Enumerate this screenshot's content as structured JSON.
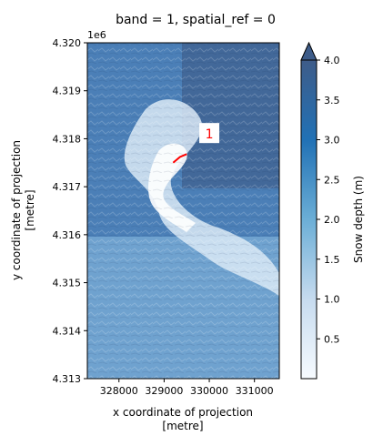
{
  "chart_data": {
    "type": "heatmap",
    "title": "band = 1, spatial_ref = 0",
    "xlabel": [
      "x coordinate of projection",
      "[metre]"
    ],
    "ylabel": [
      "y coordinate of projection",
      "[metre]"
    ],
    "x_ticks": [
      {
        "value": 328000,
        "label": "328000"
      },
      {
        "value": 329000,
        "label": "329000"
      },
      {
        "value": 330000,
        "label": "330000"
      },
      {
        "value": 331000,
        "label": "331000"
      }
    ],
    "y_ticks": [
      {
        "value": 4.313,
        "label": "4.313"
      },
      {
        "value": 4.314,
        "label": "4.314"
      },
      {
        "value": 4.315,
        "label": "4.315"
      },
      {
        "value": 4.316,
        "label": "4.316"
      },
      {
        "value": 4.317,
        "label": "4.317"
      },
      {
        "value": 4.318,
        "label": "4.318"
      },
      {
        "value": 4.319,
        "label": "4.319"
      },
      {
        "value": 4.32,
        "label": "4.320"
      }
    ],
    "y_offset_label": "1e6",
    "xlim": [
      327300,
      331550
    ],
    "ylim": [
      4.313,
      4.32
    ],
    "colorbar": {
      "label": "Snow depth (m)",
      "range": [
        0,
        4.0
      ],
      "extend": "max",
      "cmap": "Blues",
      "ticks": [
        {
          "value": 0.5,
          "label": "0.5"
        },
        {
          "value": 1.0,
          "label": "1.0"
        },
        {
          "value": 1.5,
          "label": "1.5"
        },
        {
          "value": 2.0,
          "label": "2.0"
        },
        {
          "value": 2.5,
          "label": "2.5"
        },
        {
          "value": 3.0,
          "label": "3.0"
        },
        {
          "value": 3.5,
          "label": "3.5"
        },
        {
          "value": 4.0,
          "label": "4.0"
        }
      ],
      "colors": [
        "#f7fbff",
        "#c6dbef",
        "#6baed6",
        "#2171b5",
        "#3e5c89"
      ]
    },
    "annotations": [
      {
        "text": "1",
        "x": 330000,
        "y": 4.3181,
        "color": "#ff0000",
        "box": "#ffffff"
      }
    ],
    "transect": {
      "color": "#ff0000",
      "x": [
        329200,
        329350,
        329500
      ],
      "y": [
        4.3175,
        4.31762,
        4.31768
      ]
    }
  }
}
